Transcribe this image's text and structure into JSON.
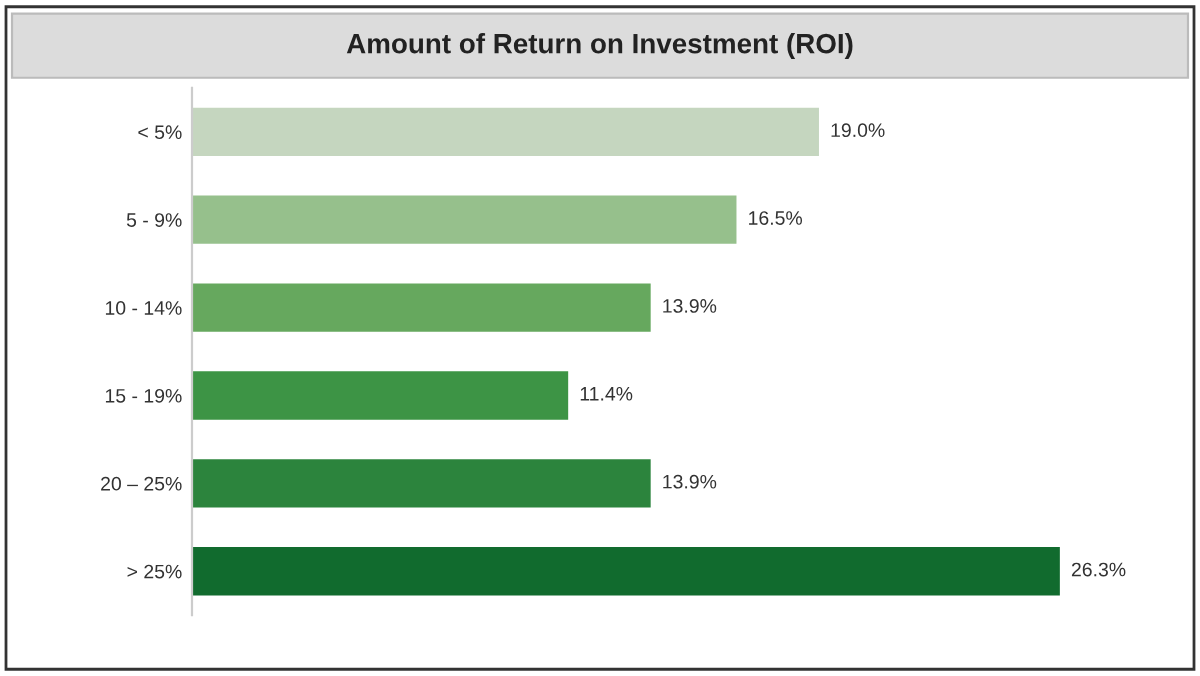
{
  "chart_data": {
    "type": "bar",
    "orientation": "horizontal",
    "title": "Amount of Return on Investment (ROI)",
    "categories": [
      "< 5%",
      "5 - 9%",
      "10 - 14%",
      "15 - 19%",
      "20 – 25%",
      "> 25%"
    ],
    "values": [
      19.0,
      16.5,
      13.9,
      11.4,
      13.9,
      26.3
    ],
    "value_labels": [
      "19.0%",
      "16.5%",
      "13.9%",
      "11.4%",
      "13.9%",
      "26.3%"
    ],
    "colors": [
      "#c5d6bf",
      "#96c08c",
      "#66a85e",
      "#3d9445",
      "#2c843d",
      "#116b2e"
    ],
    "grid": false,
    "legend": false
  }
}
